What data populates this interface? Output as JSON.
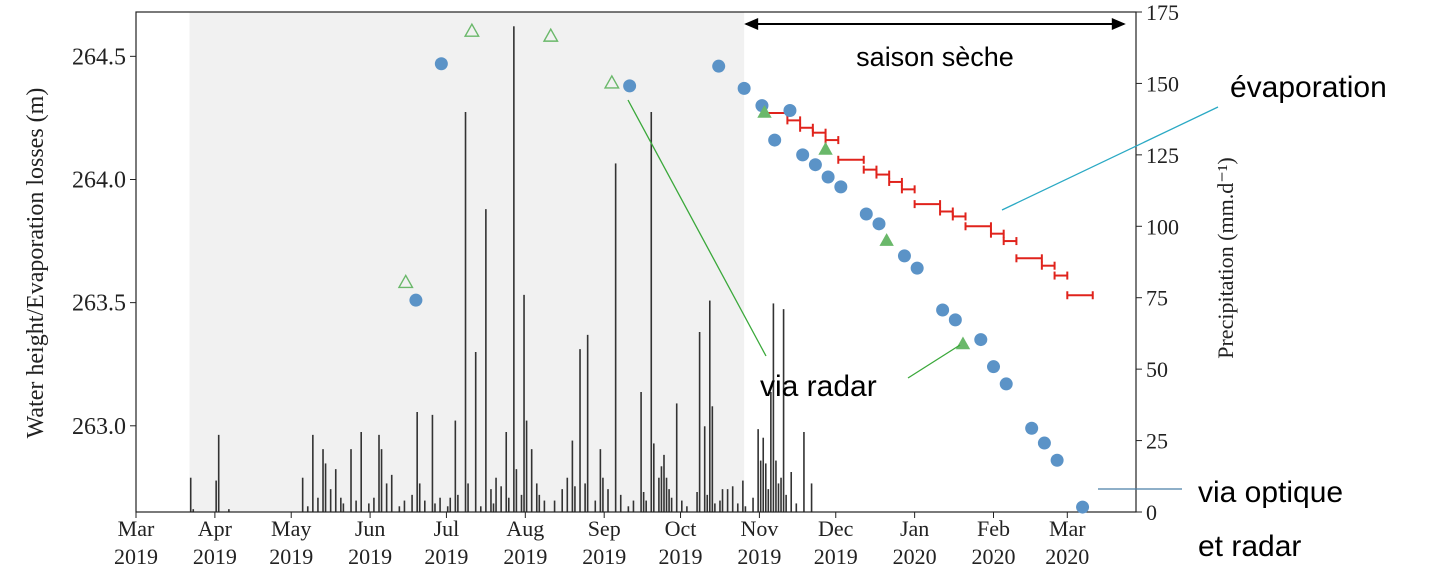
{
  "chart_data": {
    "type": "scatter",
    "ylabel_left": "Water height/Evaporation losses (m)",
    "ylabel_right": "Precipitation (mm.d⁻¹)",
    "xlim": [
      "2019-03-01",
      "2020-03-28"
    ],
    "ylim_left": [
      262.65,
      264.68
    ],
    "ylim_right": [
      0,
      175
    ],
    "x_ticks": [
      {
        "date": "2019-03-01",
        "label": [
          "Mar",
          "2019"
        ]
      },
      {
        "date": "2019-04-01",
        "label": [
          "Apr",
          "2019"
        ]
      },
      {
        "date": "2019-05-01",
        "label": [
          "May",
          "2019"
        ]
      },
      {
        "date": "2019-06-01",
        "label": [
          "Jun",
          "2019"
        ]
      },
      {
        "date": "2019-07-01",
        "label": [
          "Jul",
          "2019"
        ]
      },
      {
        "date": "2019-08-01",
        "label": [
          "Aug",
          "2019"
        ]
      },
      {
        "date": "2019-09-01",
        "label": [
          "Sep",
          "2019"
        ]
      },
      {
        "date": "2019-10-01",
        "label": [
          "Oct",
          "2019"
        ]
      },
      {
        "date": "2019-11-01",
        "label": [
          "Nov",
          "2019"
        ]
      },
      {
        "date": "2019-12-01",
        "label": [
          "Dec",
          "2019"
        ]
      },
      {
        "date": "2020-01-01",
        "label": [
          "Jan",
          "2020"
        ]
      },
      {
        "date": "2020-02-01",
        "label": [
          "Feb",
          "2020"
        ]
      },
      {
        "date": "2020-03-01",
        "label": [
          "Mar",
          "2020"
        ]
      }
    ],
    "y_ticks_left": [
      "263.0",
      "263.5",
      "264.0",
      "264.5"
    ],
    "y_ticks_left_values": [
      263.0,
      263.5,
      264.0,
      264.5
    ],
    "y_ticks_right": [
      "0",
      "25",
      "50",
      "75",
      "100",
      "125",
      "150",
      "175"
    ],
    "y_ticks_right_values": [
      0,
      25,
      50,
      75,
      100,
      125,
      150,
      175
    ],
    "shaded_period": [
      "2019-03-22",
      "2019-10-26"
    ],
    "dry_season": {
      "label": "saison sèche",
      "range": [
        "2019-10-26",
        "2020-03-24"
      ]
    },
    "series": [
      {
        "kind": "optical_radar",
        "marker": "circle",
        "color": "#5b93c7",
        "points": [
          {
            "x": "2019-06-19",
            "y": 263.51
          },
          {
            "x": "2019-06-29",
            "y": 264.47
          },
          {
            "x": "2019-09-11",
            "y": 264.38
          },
          {
            "x": "2019-10-16",
            "y": 264.46
          },
          {
            "x": "2019-10-26",
            "y": 264.37
          },
          {
            "x": "2019-11-02",
            "y": 264.3
          },
          {
            "x": "2019-11-07",
            "y": 264.16
          },
          {
            "x": "2019-11-13",
            "y": 264.28
          },
          {
            "x": "2019-11-18",
            "y": 264.1
          },
          {
            "x": "2019-11-23",
            "y": 264.06
          },
          {
            "x": "2019-11-28",
            "y": 264.01
          },
          {
            "x": "2019-12-03",
            "y": 263.97
          },
          {
            "x": "2019-12-13",
            "y": 263.86
          },
          {
            "x": "2019-12-18",
            "y": 263.82
          },
          {
            "x": "2019-12-28",
            "y": 263.69
          },
          {
            "x": "2020-01-02",
            "y": 263.64
          },
          {
            "x": "2020-01-12",
            "y": 263.47
          },
          {
            "x": "2020-01-17",
            "y": 263.43
          },
          {
            "x": "2020-01-27",
            "y": 263.35
          },
          {
            "x": "2020-02-01",
            "y": 263.24
          },
          {
            "x": "2020-02-06",
            "y": 263.17
          },
          {
            "x": "2020-02-16",
            "y": 262.99
          },
          {
            "x": "2020-02-21",
            "y": 262.93
          },
          {
            "x": "2020-02-26",
            "y": 262.86
          },
          {
            "x": "2020-03-07",
            "y": 262.67
          }
        ]
      },
      {
        "kind": "radar_filled",
        "marker": "triangle",
        "color": "#6ab86a",
        "points": [
          {
            "x": "2019-11-03",
            "y": 264.27
          },
          {
            "x": "2019-11-27",
            "y": 264.12
          },
          {
            "x": "2019-12-21",
            "y": 263.75
          },
          {
            "x": "2020-01-20",
            "y": 263.33
          }
        ]
      },
      {
        "kind": "radar_open",
        "marker": "triangle-open",
        "color": "#6ab86a",
        "points": [
          {
            "x": "2019-06-15",
            "y": 263.58
          },
          {
            "x": "2019-07-11",
            "y": 264.6
          },
          {
            "x": "2019-08-11",
            "y": 264.58
          },
          {
            "x": "2019-09-04",
            "y": 264.39
          }
        ]
      },
      {
        "kind": "evaporation",
        "marker": "step",
        "color": "#e0231c",
        "segments": [
          {
            "x0": "2019-11-02",
            "x1": "2019-11-12",
            "y": 264.27
          },
          {
            "x0": "2019-11-12",
            "x1": "2019-11-17",
            "y": 264.24
          },
          {
            "x0": "2019-11-17",
            "x1": "2019-11-22",
            "y": 264.21
          },
          {
            "x0": "2019-11-22",
            "x1": "2019-11-27",
            "y": 264.19
          },
          {
            "x0": "2019-11-27",
            "x1": "2019-12-02",
            "y": 264.16
          },
          {
            "x0": "2019-12-02",
            "x1": "2019-12-12",
            "y": 264.08
          },
          {
            "x0": "2019-12-12",
            "x1": "2019-12-17",
            "y": 264.04
          },
          {
            "x0": "2019-12-17",
            "x1": "2019-12-22",
            "y": 264.02
          },
          {
            "x0": "2019-12-22",
            "x1": "2019-12-27",
            "y": 263.99
          },
          {
            "x0": "2019-12-27",
            "x1": "2020-01-01",
            "y": 263.96
          },
          {
            "x0": "2020-01-01",
            "x1": "2020-01-11",
            "y": 263.9
          },
          {
            "x0": "2020-01-11",
            "x1": "2020-01-16",
            "y": 263.87
          },
          {
            "x0": "2020-01-16",
            "x1": "2020-01-21",
            "y": 263.85
          },
          {
            "x0": "2020-01-21",
            "x1": "2020-01-31",
            "y": 263.81
          },
          {
            "x0": "2020-01-31",
            "x1": "2020-02-05",
            "y": 263.78
          },
          {
            "x0": "2020-02-05",
            "x1": "2020-02-10",
            "y": 263.75
          },
          {
            "x0": "2020-02-10",
            "x1": "2020-02-20",
            "y": 263.68
          },
          {
            "x0": "2020-02-20",
            "x1": "2020-02-25",
            "y": 263.65
          },
          {
            "x0": "2020-02-25",
            "x1": "2020-03-01",
            "y": 263.61
          },
          {
            "x0": "2020-03-01",
            "x1": "2020-03-11",
            "y": 263.53
          }
        ]
      },
      {
        "kind": "precipitation",
        "marker": "bar",
        "color": "#333333",
        "bars": [
          [
            "2019-03-22",
            12
          ],
          [
            "2019-03-23",
            1
          ],
          [
            "2019-04-01",
            11
          ],
          [
            "2019-04-02",
            27
          ],
          [
            "2019-04-06",
            1
          ],
          [
            "2019-05-05",
            12
          ],
          [
            "2019-05-07",
            2
          ],
          [
            "2019-05-09",
            27
          ],
          [
            "2019-05-11",
            5
          ],
          [
            "2019-05-13",
            22
          ],
          [
            "2019-05-14",
            17
          ],
          [
            "2019-05-16",
            8
          ],
          [
            "2019-05-18",
            15
          ],
          [
            "2019-05-20",
            5
          ],
          [
            "2019-05-21",
            3
          ],
          [
            "2019-05-24",
            22
          ],
          [
            "2019-05-26",
            4
          ],
          [
            "2019-05-28",
            28
          ],
          [
            "2019-05-31",
            3
          ],
          [
            "2019-06-02",
            5
          ],
          [
            "2019-06-04",
            27
          ],
          [
            "2019-06-05",
            22
          ],
          [
            "2019-06-07",
            10
          ],
          [
            "2019-06-09",
            13
          ],
          [
            "2019-06-12",
            2
          ],
          [
            "2019-06-14",
            4
          ],
          [
            "2019-06-17",
            6
          ],
          [
            "2019-06-19",
            35
          ],
          [
            "2019-06-20",
            10
          ],
          [
            "2019-06-22",
            4
          ],
          [
            "2019-06-25",
            34
          ],
          [
            "2019-06-26",
            3
          ],
          [
            "2019-06-28",
            5
          ],
          [
            "2019-07-01",
            2
          ],
          [
            "2019-07-02",
            5
          ],
          [
            "2019-07-04",
            32
          ],
          [
            "2019-07-05",
            6
          ],
          [
            "2019-07-08",
            140
          ],
          [
            "2019-07-09",
            10
          ],
          [
            "2019-07-12",
            56
          ],
          [
            "2019-07-14",
            2
          ],
          [
            "2019-07-16",
            106
          ],
          [
            "2019-07-18",
            8
          ],
          [
            "2019-07-19",
            3
          ],
          [
            "2019-07-20",
            12
          ],
          [
            "2019-07-22",
            9
          ],
          [
            "2019-07-24",
            28
          ],
          [
            "2019-07-25",
            5
          ],
          [
            "2019-07-27",
            170
          ],
          [
            "2019-07-28",
            15
          ],
          [
            "2019-07-30",
            6
          ],
          [
            "2019-07-31",
            76
          ],
          [
            "2019-08-01",
            32
          ],
          [
            "2019-08-03",
            22
          ],
          [
            "2019-08-05",
            10
          ],
          [
            "2019-08-06",
            6
          ],
          [
            "2019-08-08",
            4
          ],
          [
            "2019-08-12",
            4
          ],
          [
            "2019-08-15",
            8
          ],
          [
            "2019-08-17",
            12
          ],
          [
            "2019-08-19",
            25
          ],
          [
            "2019-08-20",
            9
          ],
          [
            "2019-08-22",
            57
          ],
          [
            "2019-08-24",
            10
          ],
          [
            "2019-08-25",
            62
          ],
          [
            "2019-08-28",
            4
          ],
          [
            "2019-08-30",
            22
          ],
          [
            "2019-08-31",
            12
          ],
          [
            "2019-09-02",
            8
          ],
          [
            "2019-09-05",
            122
          ],
          [
            "2019-09-07",
            6
          ],
          [
            "2019-09-10",
            2
          ],
          [
            "2019-09-12",
            4
          ],
          [
            "2019-09-15",
            42
          ],
          [
            "2019-09-16",
            7
          ],
          [
            "2019-09-17",
            4
          ],
          [
            "2019-09-19",
            140
          ],
          [
            "2019-09-20",
            24
          ],
          [
            "2019-09-22",
            12
          ],
          [
            "2019-09-23",
            16
          ],
          [
            "2019-09-24",
            20
          ],
          [
            "2019-09-25",
            12
          ],
          [
            "2019-09-26",
            8
          ],
          [
            "2019-09-27",
            5
          ],
          [
            "2019-09-29",
            38
          ],
          [
            "2019-10-01",
            4
          ],
          [
            "2019-10-03",
            2
          ],
          [
            "2019-10-07",
            7
          ],
          [
            "2019-10-08",
            63
          ],
          [
            "2019-10-10",
            30
          ],
          [
            "2019-10-11",
            6
          ],
          [
            "2019-10-12",
            74
          ],
          [
            "2019-10-13",
            37
          ],
          [
            "2019-10-14",
            3
          ],
          [
            "2019-10-16",
            4
          ],
          [
            "2019-10-17",
            8
          ],
          [
            "2019-10-19",
            8
          ],
          [
            "2019-10-21",
            9
          ],
          [
            "2019-10-23",
            3
          ],
          [
            "2019-10-25",
            11
          ],
          [
            "2019-10-26",
            2
          ],
          [
            "2019-10-29",
            5
          ],
          [
            "2019-10-31",
            29
          ],
          [
            "2019-11-01",
            18
          ],
          [
            "2019-11-02",
            26
          ],
          [
            "2019-11-03",
            17
          ],
          [
            "2019-11-04",
            8
          ],
          [
            "2019-11-05",
            42
          ],
          [
            "2019-11-06",
            73
          ],
          [
            "2019-11-07",
            18
          ],
          [
            "2019-11-08",
            10
          ],
          [
            "2019-11-09",
            12
          ],
          [
            "2019-11-10",
            71
          ],
          [
            "2019-11-11",
            6
          ],
          [
            "2019-11-13",
            14
          ],
          [
            "2019-11-15",
            3
          ],
          [
            "2019-11-18",
            28
          ],
          [
            "2019-11-21",
            10
          ]
        ]
      }
    ],
    "annotations": [
      {
        "text": "évaporation",
        "points_to": "evaporation"
      },
      {
        "text": "via radar",
        "points_to": "radar"
      },
      {
        "text": [
          "via optique",
          "et radar"
        ],
        "points_to": "optical_radar"
      }
    ]
  }
}
